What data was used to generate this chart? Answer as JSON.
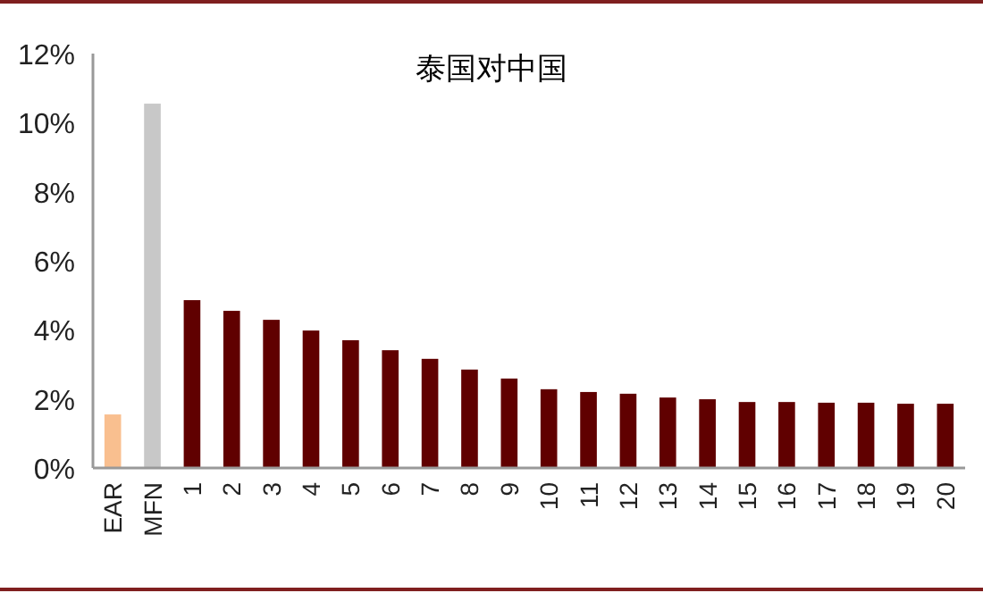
{
  "chart_data": {
    "type": "bar",
    "title": "泰国对中国",
    "categories": [
      "EAR",
      "MFN",
      "1",
      "2",
      "3",
      "4",
      "5",
      "6",
      "7",
      "8",
      "9",
      "10",
      "11",
      "12",
      "13",
      "14",
      "15",
      "16",
      "17",
      "18",
      "19",
      "20"
    ],
    "values": [
      1.55,
      10.55,
      4.86,
      4.55,
      4.29,
      3.98,
      3.7,
      3.41,
      3.16,
      2.85,
      2.59,
      2.28,
      2.2,
      2.15,
      2.04,
      1.99,
      1.91,
      1.91,
      1.89,
      1.89,
      1.86,
      1.86
    ],
    "colors": [
      "#f9bf8f",
      "#c8c8c8",
      "#600000",
      "#600000",
      "#600000",
      "#600000",
      "#600000",
      "#600000",
      "#600000",
      "#600000",
      "#600000",
      "#600000",
      "#600000",
      "#600000",
      "#600000",
      "#600000",
      "#600000",
      "#600000",
      "#600000",
      "#600000",
      "#600000",
      "#600000"
    ],
    "ylim": [
      0,
      12
    ],
    "yticks": [
      {
        "value": 0,
        "label": "0%"
      },
      {
        "value": 2,
        "label": "2%"
      },
      {
        "value": 4,
        "label": "4%"
      },
      {
        "value": 6,
        "label": "6%"
      },
      {
        "value": 8,
        "label": "8%"
      },
      {
        "value": 10,
        "label": "10%"
      },
      {
        "value": 12,
        "label": "12%"
      }
    ],
    "grid": false
  }
}
